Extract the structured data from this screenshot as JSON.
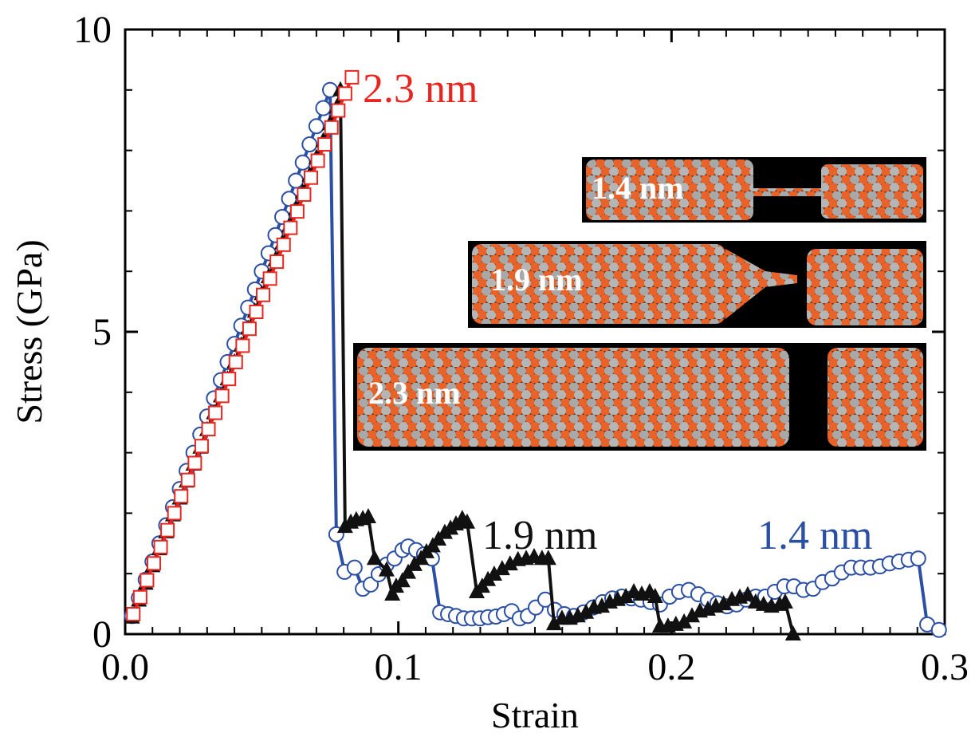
{
  "chart_data": {
    "type": "line",
    "xlabel": "Strain",
    "ylabel": "Stress (GPa)",
    "xlim": [
      0,
      0.3
    ],
    "ylim": [
      0,
      10
    ],
    "xticks": [
      {
        "value": 0,
        "label": "0.0"
      },
      0.1,
      0.2,
      0.3
    ],
    "yticks": [
      0,
      5,
      10
    ],
    "xminorticks": [
      0.01,
      0.02,
      0.03,
      0.04,
      0.05,
      0.06,
      0.07,
      0.08,
      0.09,
      0.11,
      0.12,
      0.13,
      0.14,
      0.15,
      0.16,
      0.17,
      0.18,
      0.19,
      0.21,
      0.22,
      0.23,
      0.24,
      0.25,
      0.26,
      0.27,
      0.28,
      0.29
    ],
    "yminorticks": [
      1,
      2,
      3,
      4,
      6,
      7,
      8,
      9
    ],
    "insets": [
      "1.4 nm",
      "1.9 nm",
      "2.3 nm"
    ],
    "series": [
      {
        "name": "1.4 nm",
        "color": "#2b4fa3",
        "marker": "circle",
        "x": [
          0.0025,
          0.005,
          0.0075,
          0.01,
          0.0125,
          0.015,
          0.0175,
          0.02,
          0.0225,
          0.025,
          0.0275,
          0.03,
          0.0325,
          0.035,
          0.0375,
          0.04,
          0.0425,
          0.045,
          0.0475,
          0.05,
          0.0525,
          0.055,
          0.0575,
          0.06,
          0.0625,
          0.065,
          0.0675,
          0.07,
          0.0725,
          0.075,
          0.0773,
          0.0803,
          0.084,
          0.087,
          0.0899,
          0.0928,
          0.0957,
          0.0986,
          0.1015,
          0.1036,
          0.1065,
          0.1094,
          0.1123,
          0.1153,
          0.1182,
          0.1211,
          0.124,
          0.1269,
          0.1299,
          0.1328,
          0.1357,
          0.1386,
          0.1415,
          0.1444,
          0.1474,
          0.1503,
          0.1538,
          0.1573,
          0.1608,
          0.1643,
          0.1678,
          0.1713,
          0.1748,
          0.1783,
          0.1818,
          0.1853,
          0.1888,
          0.1923,
          0.1958,
          0.1993,
          0.2028,
          0.2063,
          0.2098,
          0.2133,
          0.2168,
          0.2203,
          0.2238,
          0.2273,
          0.2308,
          0.2343,
          0.2378,
          0.2413,
          0.2448,
          0.2483,
          0.2518,
          0.2553,
          0.2588,
          0.2623,
          0.2658,
          0.2693,
          0.2728,
          0.2763,
          0.2798,
          0.2833,
          0.2868,
          0.2903,
          0.2936,
          0.2979
        ],
        "values": [
          0.3,
          0.6,
          0.9,
          1.2,
          1.5,
          1.8,
          2.1,
          2.4,
          2.7,
          3.0,
          3.3,
          3.6,
          3.9,
          4.2,
          4.5,
          4.8,
          5.1,
          5.4,
          5.7,
          6.0,
          6.3,
          6.6,
          6.9,
          7.2,
          7.5,
          7.8,
          8.1,
          8.4,
          8.7,
          9.0,
          1.65,
          1.03,
          1.1,
          0.75,
          0.82,
          0.99,
          1.15,
          1.25,
          1.39,
          1.45,
          1.39,
          1.32,
          1.25,
          0.36,
          0.33,
          0.3,
          0.26,
          0.26,
          0.26,
          0.28,
          0.29,
          0.33,
          0.38,
          0.26,
          0.3,
          0.44,
          0.57,
          0.4,
          0.33,
          0.3,
          0.36,
          0.44,
          0.53,
          0.59,
          0.62,
          0.59,
          0.57,
          0.53,
          0.49,
          0.62,
          0.7,
          0.73,
          0.66,
          0.57,
          0.51,
          0.46,
          0.49,
          0.57,
          0.62,
          0.62,
          0.7,
          0.79,
          0.79,
          0.73,
          0.75,
          0.86,
          0.92,
          1.02,
          1.1,
          1.1,
          1.1,
          1.12,
          1.17,
          1.2,
          1.23,
          1.25,
          0.16,
          0.07
        ]
      },
      {
        "name": "1.9 nm",
        "color": "#111111",
        "marker": "triangle",
        "x": [
          0.0025,
          0.005,
          0.0075,
          0.01,
          0.0125,
          0.015,
          0.0175,
          0.02,
          0.0225,
          0.025,
          0.0275,
          0.03,
          0.0325,
          0.035,
          0.0375,
          0.04,
          0.0425,
          0.045,
          0.0475,
          0.05,
          0.0525,
          0.055,
          0.0575,
          0.06,
          0.0625,
          0.065,
          0.0675,
          0.07,
          0.0725,
          0.075,
          0.0775,
          0.0788,
          0.0805,
          0.0826,
          0.0846,
          0.087,
          0.089,
          0.0913,
          0.0957,
          0.0978,
          0.0992,
          0.1015,
          0.1036,
          0.1059,
          0.1083,
          0.1103,
          0.1126,
          0.1147,
          0.117,
          0.1191,
          0.1211,
          0.1234,
          0.1252,
          0.1287,
          0.1307,
          0.1328,
          0.1351,
          0.138,
          0.1409,
          0.1438,
          0.1468,
          0.1497,
          0.1526,
          0.1549,
          0.157,
          0.1599,
          0.1628,
          0.1657,
          0.1687,
          0.1716,
          0.1745,
          0.1774,
          0.1803,
          0.1833,
          0.1862,
          0.1891,
          0.192,
          0.194,
          0.1958,
          0.1987,
          0.2016,
          0.2046,
          0.2075,
          0.2104,
          0.2133,
          0.2162,
          0.2191,
          0.2221,
          0.225,
          0.2279,
          0.2308,
          0.2337,
          0.2366,
          0.2396,
          0.2416,
          0.2445
        ],
        "values": [
          0.28,
          0.56,
          0.84,
          1.13,
          1.41,
          1.69,
          1.97,
          2.25,
          2.53,
          2.81,
          3.09,
          3.38,
          3.66,
          3.94,
          4.22,
          4.5,
          4.78,
          5.06,
          5.34,
          5.63,
          5.91,
          6.19,
          6.47,
          6.75,
          7.03,
          7.31,
          7.59,
          7.88,
          8.16,
          8.44,
          8.72,
          9.0,
          1.78,
          1.85,
          1.89,
          1.91,
          1.94,
          1.25,
          1.06,
          0.66,
          0.79,
          0.88,
          1.02,
          1.15,
          1.25,
          1.36,
          1.46,
          1.57,
          1.68,
          1.75,
          1.82,
          1.91,
          1.85,
          0.7,
          0.79,
          0.9,
          0.99,
          1.08,
          1.16,
          1.23,
          1.25,
          1.28,
          1.25,
          1.25,
          0.17,
          0.26,
          0.26,
          0.3,
          0.36,
          0.44,
          0.46,
          0.53,
          0.57,
          0.62,
          0.7,
          0.66,
          0.7,
          0.62,
          0.13,
          0.13,
          0.16,
          0.2,
          0.3,
          0.38,
          0.41,
          0.46,
          0.5,
          0.57,
          0.61,
          0.65,
          0.53,
          0.49,
          0.46,
          0.49,
          0.53,
          0.0
        ]
      },
      {
        "name": "2.3 nm",
        "color": "#e8261f",
        "marker": "square",
        "x": [
          0.003,
          0.0055,
          0.008,
          0.0105,
          0.013,
          0.0155,
          0.018,
          0.0205,
          0.023,
          0.0255,
          0.028,
          0.0305,
          0.033,
          0.0355,
          0.038,
          0.0405,
          0.043,
          0.0455,
          0.048,
          0.0505,
          0.053,
          0.0555,
          0.058,
          0.0605,
          0.063,
          0.0655,
          0.068,
          0.0705,
          0.073,
          0.0755,
          0.078,
          0.0805,
          0.083
        ],
        "values": [
          0.33,
          0.61,
          0.89,
          1.17,
          1.44,
          1.72,
          2.0,
          2.28,
          2.55,
          2.83,
          3.11,
          3.39,
          3.66,
          3.94,
          4.22,
          4.5,
          4.77,
          5.05,
          5.33,
          5.61,
          5.88,
          6.16,
          6.44,
          6.72,
          6.99,
          7.27,
          7.55,
          7.83,
          8.1,
          8.38,
          8.66,
          8.94,
          9.21
        ]
      }
    ]
  }
}
